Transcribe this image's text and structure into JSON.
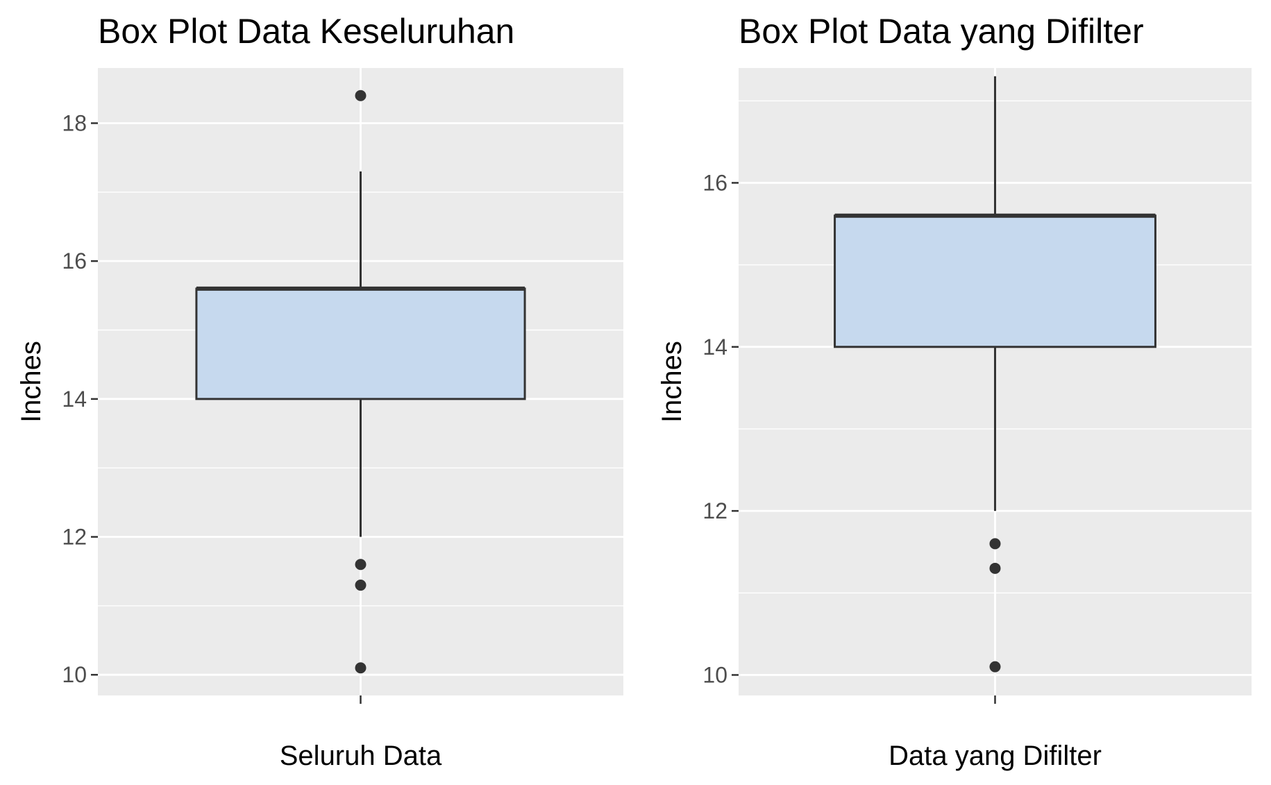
{
  "chart_data": [
    {
      "type": "box",
      "title": "Box Plot Data Keseluruhan",
      "xlabel": "Seluruh Data",
      "ylabel": "Inches",
      "category": "",
      "ylim": [
        9.7,
        18.8
      ],
      "yticks": [
        10,
        12,
        14,
        16,
        18
      ],
      "box": {
        "lower_whisker": 12.0,
        "q1": 14.0,
        "median": 15.6,
        "q3": 15.6,
        "upper_whisker": 17.3
      },
      "outliers": [
        18.4,
        11.6,
        11.3,
        10.1
      ],
      "grid": true,
      "colors": {
        "box_fill": "#c6d9ee",
        "outline": "#333333",
        "panel": "#ebebeb",
        "grid": "#ffffff"
      }
    },
    {
      "type": "box",
      "title": "Box Plot Data yang Difilter",
      "xlabel": "Data yang Difilter",
      "ylabel": "Inches",
      "category": "",
      "ylim": [
        9.75,
        17.4
      ],
      "yticks": [
        10,
        12,
        14,
        16
      ],
      "box": {
        "lower_whisker": 12.0,
        "q1": 14.0,
        "median": 15.6,
        "q3": 15.6,
        "upper_whisker": 17.3
      },
      "outliers": [
        11.6,
        11.3,
        10.1
      ],
      "grid": true,
      "colors": {
        "box_fill": "#c6d9ee",
        "outline": "#333333",
        "panel": "#ebebeb",
        "grid": "#ffffff"
      }
    }
  ]
}
